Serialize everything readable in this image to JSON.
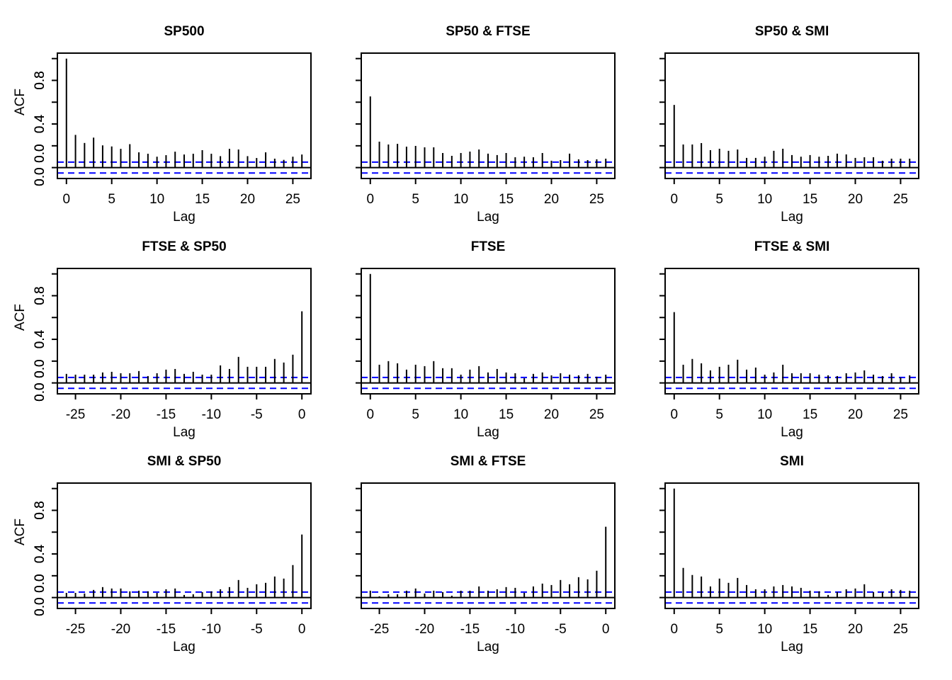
{
  "chart_data": [
    {
      "type": "bar",
      "title": "SP500",
      "xlabel": "Lag",
      "ylabel": "ACF",
      "xlim": [
        -1,
        27
      ],
      "ylim": [
        -0.1,
        1.05
      ],
      "x": [
        0,
        1,
        2,
        3,
        4,
        5,
        6,
        7,
        8,
        9,
        10,
        11,
        12,
        13,
        14,
        15,
        16,
        17,
        18,
        19,
        20,
        21,
        22,
        23,
        24,
        25,
        26
      ],
      "values": [
        1.0,
        0.3,
        0.226,
        0.275,
        0.204,
        0.194,
        0.172,
        0.215,
        0.14,
        0.127,
        0.1,
        0.114,
        0.146,
        0.12,
        0.127,
        0.16,
        0.127,
        0.105,
        0.172,
        0.166,
        0.105,
        0.088,
        0.14,
        0.082,
        0.071,
        0.1,
        0.12
      ],
      "xticks": [
        "0",
        "5",
        "10",
        "15",
        "20",
        "25"
      ],
      "xtick_values": [
        0,
        5,
        10,
        15,
        20,
        25
      ]
    },
    {
      "type": "bar",
      "title": "SP50 & FTSE",
      "xlabel": "Lag",
      "ylabel": "",
      "xlim": [
        -1,
        27
      ],
      "ylim": [
        -0.1,
        1.05
      ],
      "x": [
        0,
        1,
        2,
        3,
        4,
        5,
        6,
        7,
        8,
        9,
        10,
        11,
        12,
        13,
        14,
        15,
        16,
        17,
        18,
        19,
        20,
        21,
        22,
        23,
        24,
        25,
        26
      ],
      "values": [
        0.653,
        0.238,
        0.212,
        0.218,
        0.192,
        0.199,
        0.186,
        0.186,
        0.134,
        0.108,
        0.134,
        0.147,
        0.166,
        0.128,
        0.115,
        0.134,
        0.095,
        0.1,
        0.095,
        0.134,
        0.063,
        0.069,
        0.128,
        0.076,
        0.069,
        0.076,
        0.082
      ],
      "xticks": [
        "0",
        "5",
        "10",
        "15",
        "20",
        "25"
      ],
      "xtick_values": [
        0,
        5,
        10,
        15,
        20,
        25
      ]
    },
    {
      "type": "bar",
      "title": "SP50 & SMI",
      "xlabel": "Lag",
      "ylabel": "",
      "xlim": [
        -1,
        27
      ],
      "ylim": [
        -0.1,
        1.05
      ],
      "x": [
        0,
        1,
        2,
        3,
        4,
        5,
        6,
        7,
        8,
        9,
        10,
        11,
        12,
        13,
        14,
        15,
        16,
        17,
        18,
        19,
        20,
        21,
        22,
        23,
        24,
        25,
        26
      ],
      "values": [
        0.575,
        0.212,
        0.212,
        0.225,
        0.16,
        0.173,
        0.154,
        0.166,
        0.089,
        0.089,
        0.1,
        0.154,
        0.173,
        0.115,
        0.1,
        0.115,
        0.1,
        0.108,
        0.128,
        0.121,
        0.089,
        0.095,
        0.095,
        0.063,
        0.082,
        0.082,
        0.082
      ],
      "xticks": [
        "0",
        "5",
        "10",
        "15",
        "20",
        "25"
      ],
      "xtick_values": [
        0,
        5,
        10,
        15,
        20,
        25
      ]
    },
    {
      "type": "bar",
      "title": "FTSE & SP50",
      "xlabel": "Lag",
      "ylabel": "ACF",
      "xlim": [
        -27,
        1
      ],
      "ylim": [
        -0.1,
        1.05
      ],
      "x": [
        -26,
        -25,
        -24,
        -23,
        -22,
        -21,
        -20,
        -19,
        -18,
        -17,
        -16,
        -15,
        -14,
        -13,
        -12,
        -11,
        -10,
        -9,
        -8,
        -7,
        -6,
        -5,
        -4,
        -3,
        -2,
        -1,
        0
      ],
      "values": [
        0.083,
        0.076,
        0.076,
        0.076,
        0.096,
        0.102,
        0.089,
        0.089,
        0.109,
        0.063,
        0.089,
        0.122,
        0.128,
        0.083,
        0.102,
        0.076,
        0.076,
        0.161,
        0.128,
        0.239,
        0.148,
        0.148,
        0.148,
        0.22,
        0.187,
        0.259,
        0.657
      ],
      "xticks": [
        "-25",
        "-20",
        "-15",
        "-10",
        "-5",
        "0"
      ],
      "xtick_values": [
        -25,
        -20,
        -15,
        -10,
        -5,
        0
      ]
    },
    {
      "type": "bar",
      "title": "FTSE",
      "xlabel": "Lag",
      "ylabel": "",
      "xlim": [
        -1,
        27
      ],
      "ylim": [
        -0.1,
        1.05
      ],
      "x": [
        0,
        1,
        2,
        3,
        4,
        5,
        6,
        7,
        8,
        9,
        10,
        11,
        12,
        13,
        14,
        15,
        16,
        17,
        18,
        19,
        20,
        21,
        22,
        23,
        24,
        25,
        26
      ],
      "values": [
        1.0,
        0.167,
        0.2,
        0.18,
        0.122,
        0.167,
        0.154,
        0.2,
        0.135,
        0.135,
        0.076,
        0.122,
        0.154,
        0.096,
        0.128,
        0.096,
        0.089,
        0.043,
        0.083,
        0.096,
        0.07,
        0.089,
        0.076,
        0.07,
        0.083,
        0.057,
        0.076
      ],
      "xticks": [
        "0",
        "5",
        "10",
        "15",
        "20",
        "25"
      ],
      "xtick_values": [
        0,
        5,
        10,
        15,
        20,
        25
      ]
    },
    {
      "type": "bar",
      "title": "FTSE & SMI",
      "xlabel": "Lag",
      "ylabel": "",
      "xlim": [
        -1,
        27
      ],
      "ylim": [
        -0.1,
        1.05
      ],
      "x": [
        0,
        1,
        2,
        3,
        4,
        5,
        6,
        7,
        8,
        9,
        10,
        11,
        12,
        13,
        14,
        15,
        16,
        17,
        18,
        19,
        20,
        21,
        22,
        23,
        24,
        25,
        26
      ],
      "values": [
        0.65,
        0.167,
        0.22,
        0.18,
        0.115,
        0.148,
        0.167,
        0.213,
        0.122,
        0.141,
        0.076,
        0.096,
        0.167,
        0.089,
        0.089,
        0.089,
        0.076,
        0.07,
        0.063,
        0.089,
        0.096,
        0.115,
        0.076,
        0.063,
        0.089,
        0.05,
        0.07
      ],
      "xticks": [
        "0",
        "5",
        "10",
        "15",
        "20",
        "25"
      ],
      "xtick_values": [
        0,
        5,
        10,
        15,
        20,
        25
      ]
    },
    {
      "type": "bar",
      "title": "SMI & SP50",
      "xlabel": "Lag",
      "ylabel": "ACF",
      "xlim": [
        -27,
        1
      ],
      "ylim": [
        -0.1,
        1.05
      ],
      "x": [
        -26,
        -25,
        -24,
        -23,
        -22,
        -21,
        -20,
        -19,
        -18,
        -17,
        -16,
        -15,
        -14,
        -13,
        -12,
        -11,
        -10,
        -9,
        -8,
        -7,
        -6,
        -5,
        -4,
        -3,
        -2,
        -1,
        0
      ],
      "values": [
        0.043,
        0.043,
        0.037,
        0.07,
        0.096,
        0.083,
        0.083,
        0.057,
        0.063,
        0.057,
        0.043,
        0.076,
        0.083,
        0.024,
        0.03,
        0.05,
        0.057,
        0.076,
        0.096,
        0.161,
        0.089,
        0.122,
        0.135,
        0.193,
        0.174,
        0.298,
        0.578
      ],
      "xticks": [
        "-25",
        "-20",
        "-15",
        "-10",
        "-5",
        "0"
      ],
      "xtick_values": [
        -25,
        -20,
        -15,
        -10,
        -5,
        0
      ]
    },
    {
      "type": "bar",
      "title": "SMI & FTSE",
      "xlabel": "Lag",
      "ylabel": "",
      "xlim": [
        -27,
        1
      ],
      "ylim": [
        -0.1,
        1.05
      ],
      "x": [
        -26,
        -25,
        -24,
        -23,
        -22,
        -21,
        -20,
        -19,
        -18,
        -17,
        -16,
        -15,
        -14,
        -13,
        -12,
        -11,
        -10,
        -9,
        -8,
        -7,
        -6,
        -5,
        -4,
        -3,
        -2,
        -1,
        0
      ],
      "values": [
        0.063,
        0.011,
        0.03,
        0.03,
        0.063,
        0.083,
        0.037,
        0.063,
        0.05,
        0.017,
        0.063,
        0.063,
        0.102,
        0.063,
        0.076,
        0.096,
        0.089,
        0.043,
        0.102,
        0.128,
        0.115,
        0.161,
        0.122,
        0.187,
        0.167,
        0.246,
        0.65
      ],
      "xticks": [
        "-25",
        "-20",
        "-15",
        "-10",
        "-5",
        "0"
      ],
      "xtick_values": [
        -25,
        -20,
        -15,
        -10,
        -5,
        0
      ]
    },
    {
      "type": "bar",
      "title": "SMI",
      "xlabel": "Lag",
      "ylabel": "",
      "xlim": [
        -1,
        27
      ],
      "ylim": [
        -0.1,
        1.05
      ],
      "x": [
        0,
        1,
        2,
        3,
        4,
        5,
        6,
        7,
        8,
        9,
        10,
        11,
        12,
        13,
        14,
        15,
        16,
        17,
        18,
        19,
        20,
        21,
        22,
        23,
        24,
        25,
        26
      ],
      "values": [
        1.0,
        0.272,
        0.207,
        0.193,
        0.102,
        0.174,
        0.135,
        0.18,
        0.115,
        0.076,
        0.076,
        0.102,
        0.115,
        0.102,
        0.089,
        0.063,
        0.057,
        0.024,
        0.05,
        0.076,
        0.083,
        0.122,
        0.05,
        0.05,
        0.076,
        0.07,
        0.063
      ],
      "xticks": [
        "0",
        "5",
        "10",
        "15",
        "20",
        "25"
      ],
      "xtick_values": [
        0,
        5,
        10,
        15,
        20,
        25
      ]
    }
  ],
  "shared": {
    "confidence_bound": 0.05,
    "ytick_values": [
      0,
      0.2,
      0.4,
      0.6,
      0.8,
      1.0
    ],
    "ytick_labels": [
      {
        "value": 0,
        "label": "0.0"
      },
      {
        "value": 0.4,
        "label": "0.4"
      },
      {
        "value": 0.8,
        "label": "0.8"
      }
    ],
    "ytick_extra_label": "0.0",
    "colors": {
      "stem": "#000000",
      "confidence": "#0000FF",
      "axis": "#000000"
    }
  }
}
